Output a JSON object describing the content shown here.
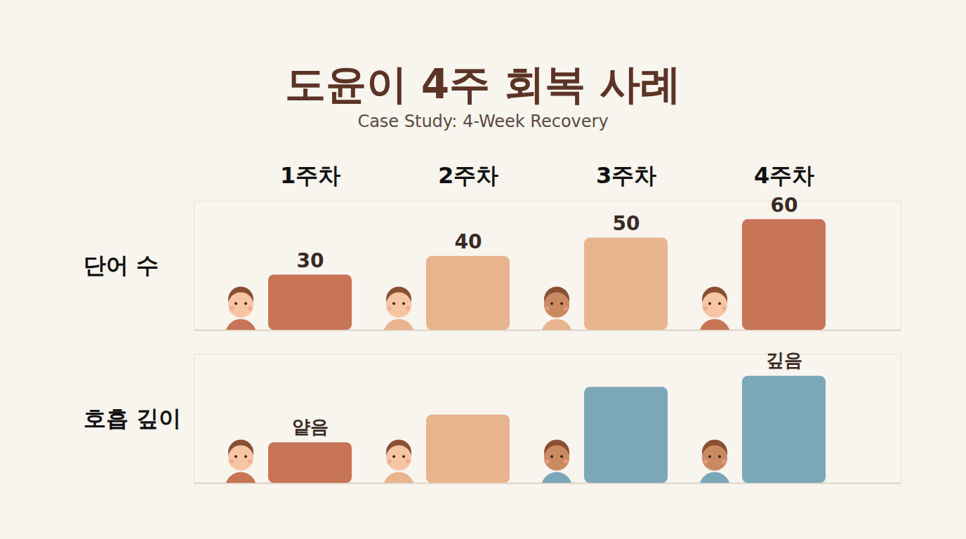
{
  "chart_data": [
    {
      "type": "bar",
      "title": "도윤이 4주 회복 사례",
      "subtitle": "Case Study: 4-Week Recovery",
      "y_label": "단어 수",
      "categories": [
        "1주차",
        "2주차",
        "3주차",
        "4주차"
      ],
      "values": [
        30,
        40,
        50,
        60
      ],
      "colors": [
        "#c87456",
        "#e8b48e",
        "#e8b48e",
        "#c87456"
      ],
      "ylim": [
        0,
        70
      ],
      "yticks": [],
      "data_labels": true,
      "tick_labels": "x"
    },
    {
      "type": "bar",
      "y_label": "호흡 깊이",
      "categories": [
        "1주차",
        "2주차",
        "3주차",
        "4주차"
      ],
      "values": [
        22,
        37,
        52,
        58
      ],
      "colors": [
        "#c87456",
        "#e8b48e",
        "#7ba7b8",
        "#7ba7b8"
      ],
      "ylim": [
        0,
        70
      ],
      "yticks": [],
      "data_labels": false,
      "tick_labels": false,
      "annotations": [
        {
          "category": "1주차",
          "text": "얕음"
        },
        {
          "category": "4주차",
          "text": "깊음"
        }
      ]
    }
  ]
}
